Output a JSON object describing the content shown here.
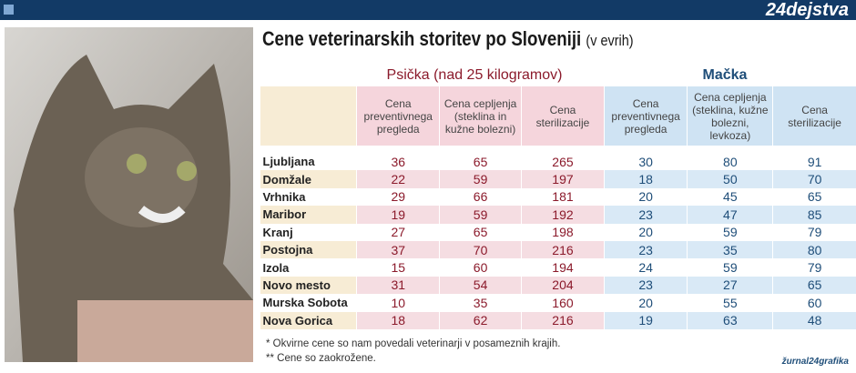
{
  "header": {
    "logo": "24dejstva"
  },
  "title": "Cene veterinarskih storitev po Sloveniji",
  "title_note": "(v evrih)",
  "groups": [
    "Psička (nad 25 kilogramov)",
    "Mačka"
  ],
  "table": {
    "columns": [
      "Cena preventivnega pregleda",
      "Cena cepljenja (steklina in kužne bolezni)",
      "Cena sterilizacije",
      "Cena preventivnega pregleda",
      "Cena cepljenja (steklina, kužne bolezni, levkoza)",
      "Cena sterilizacije"
    ],
    "rows": [
      [
        "Ljubljana",
        36,
        65,
        265,
        30,
        80,
        91
      ],
      [
        "Domžale",
        22,
        59,
        197,
        18,
        50,
        70
      ],
      [
        "Vrhnika",
        29,
        66,
        181,
        20,
        45,
        65
      ],
      [
        "Maribor",
        19,
        59,
        192,
        23,
        47,
        85
      ],
      [
        "Kranj",
        27,
        65,
        198,
        20,
        59,
        79
      ],
      [
        "Postojna",
        37,
        70,
        216,
        23,
        35,
        80
      ],
      [
        "Izola",
        15,
        60,
        194,
        24,
        59,
        79
      ],
      [
        "Novo mesto",
        31,
        54,
        204,
        23,
        27,
        65
      ],
      [
        "Murska Sobota",
        10,
        35,
        160,
        20,
        55,
        60
      ],
      [
        "Nova Gorica",
        18,
        62,
        216,
        19,
        63,
        48
      ]
    ]
  },
  "footnotes": [
    "* Okvirne cene so nam povedali veterinarji v posameznih krajih.",
    "** Cene so zaokrožene."
  ],
  "credit": "žurnal24grafika"
}
